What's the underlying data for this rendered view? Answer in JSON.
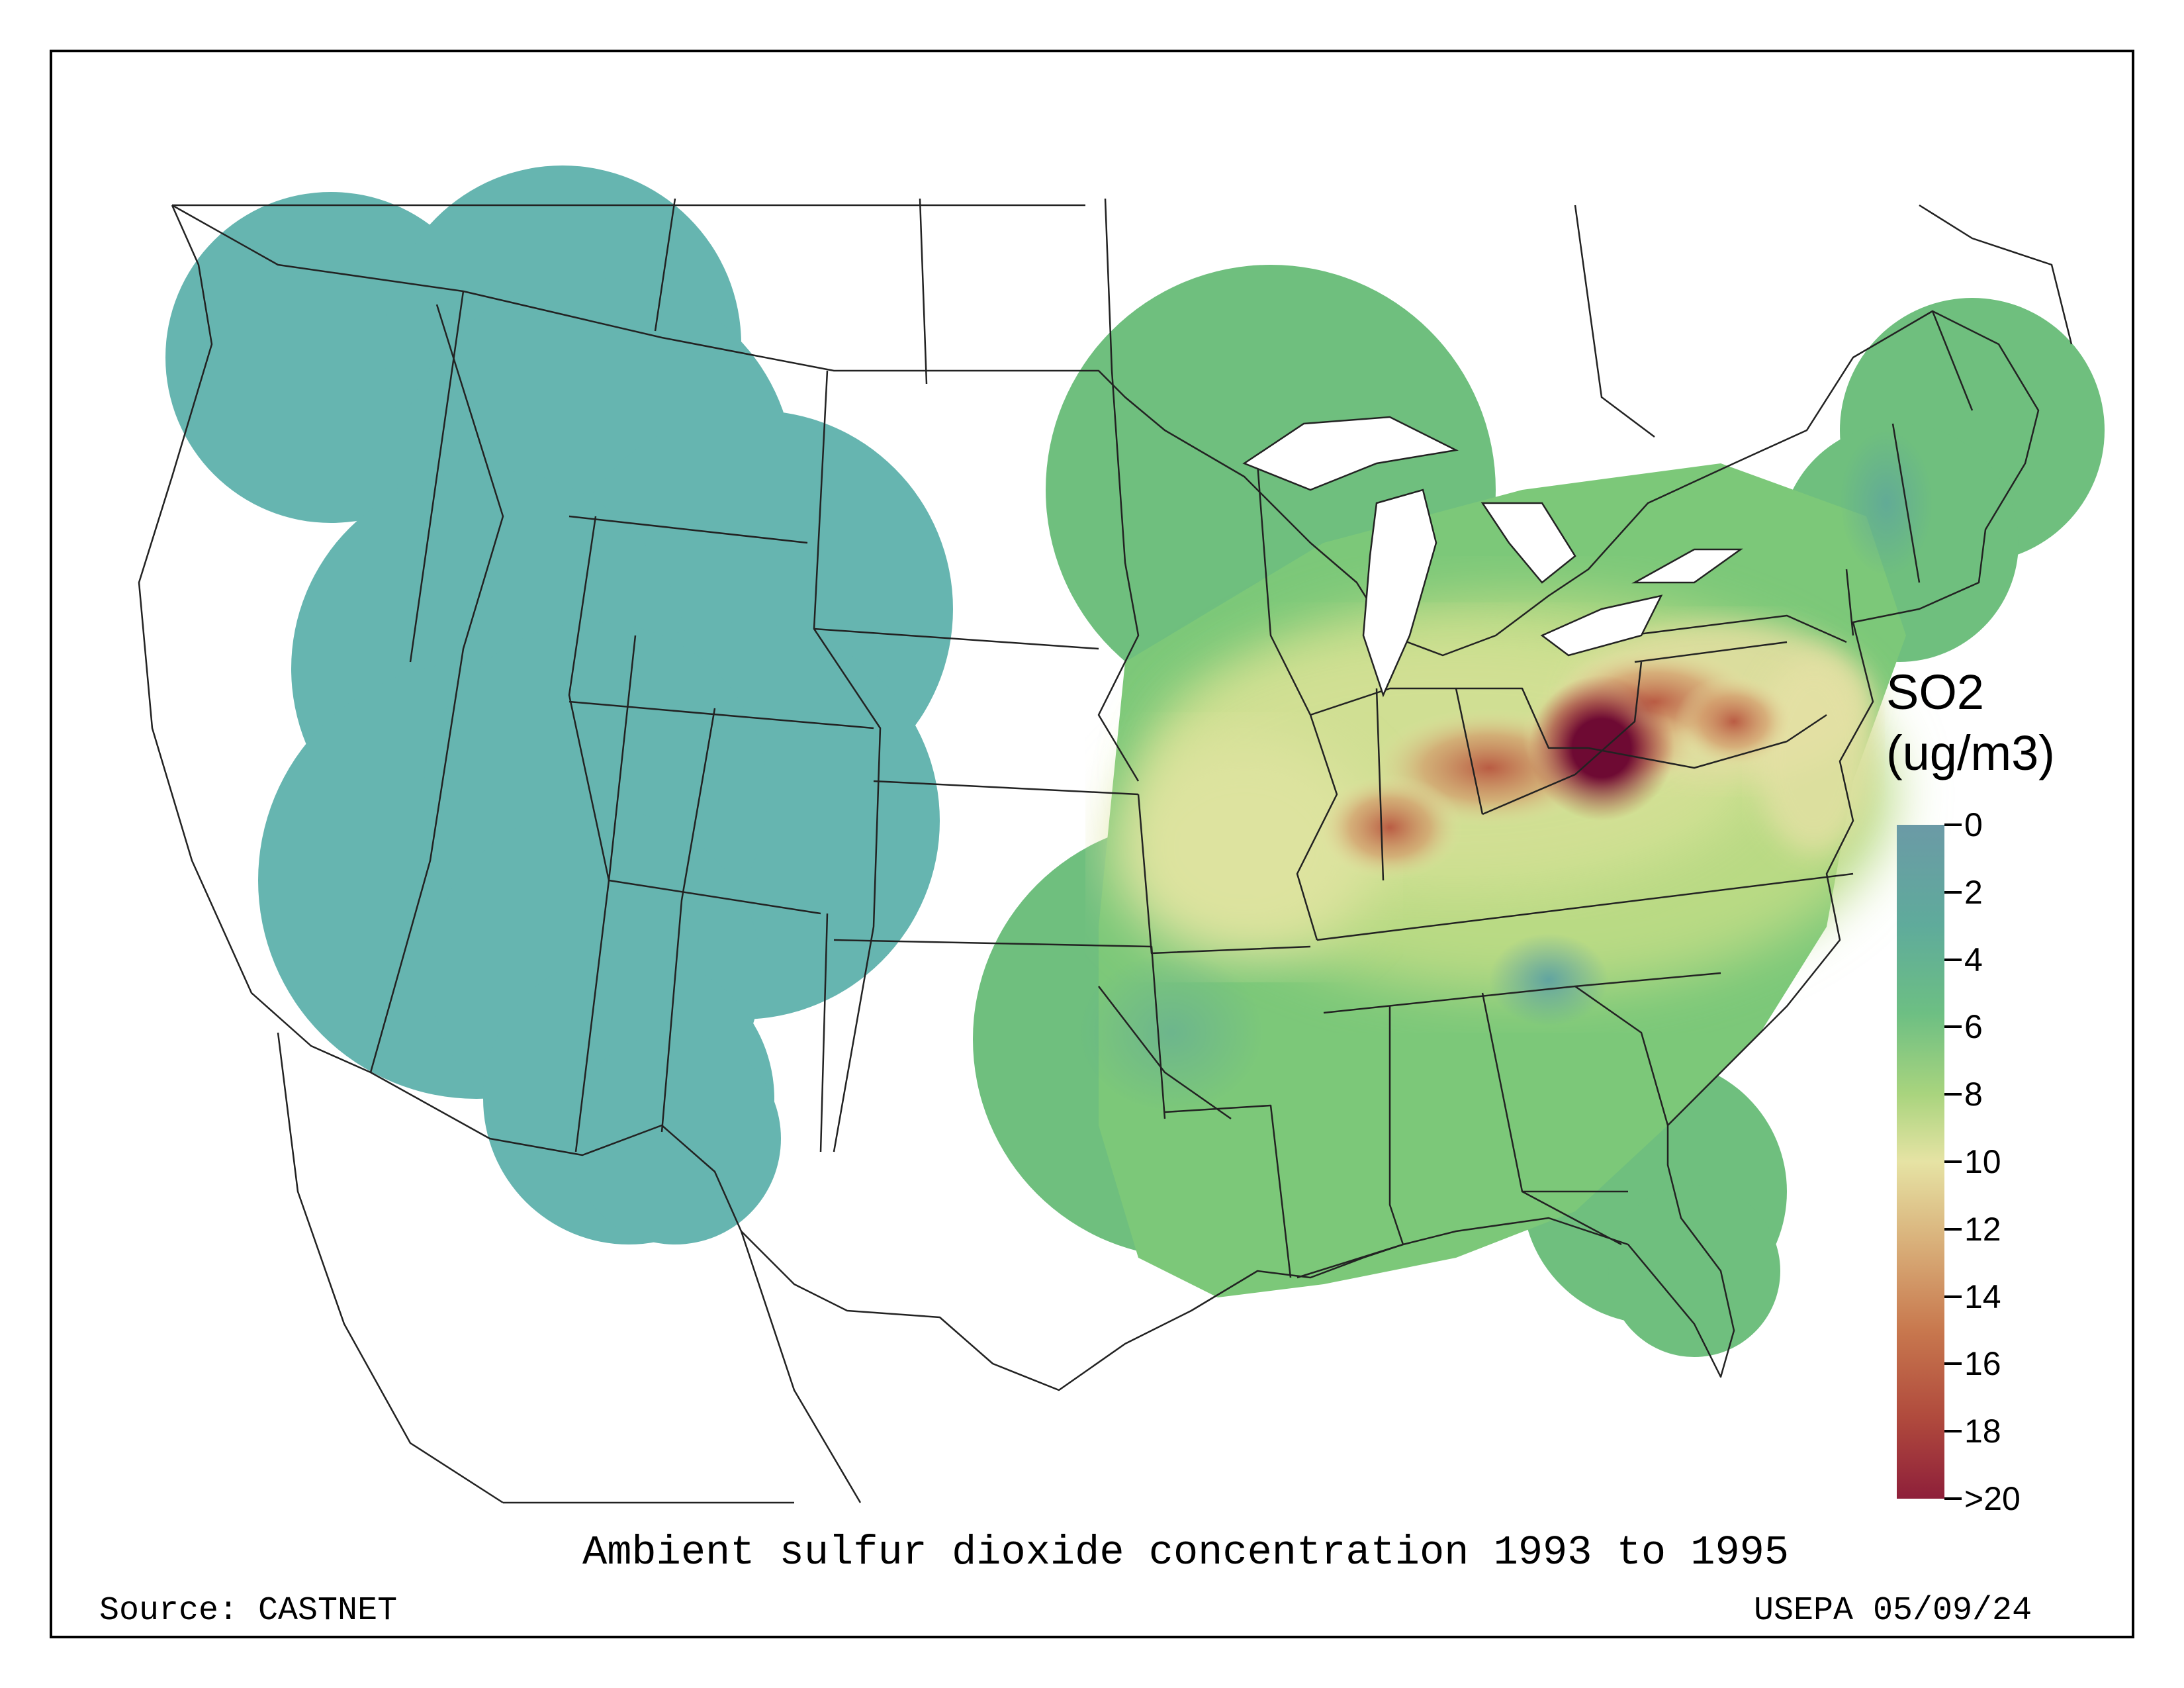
{
  "title": "Ambient sulfur dioxide concentration 1993 to 1995",
  "source": "Source: CASTNET",
  "credit": "USEPA 05/09/24",
  "legend": {
    "title_line1": "SO2",
    "title_line2": "(ug/m3)",
    "ticks": [
      {
        "value": 0,
        "label": "0"
      },
      {
        "value": 2,
        "label": "2"
      },
      {
        "value": 4,
        "label": "4"
      },
      {
        "value": 6,
        "label": "6"
      },
      {
        "value": 8,
        "label": "8"
      },
      {
        "value": 10,
        "label": "10"
      },
      {
        "value": 12,
        "label": "12"
      },
      {
        "value": 14,
        "label": "14"
      },
      {
        "value": 16,
        "label": "16"
      },
      {
        "value": 18,
        "label": "18"
      },
      {
        "value": 20,
        "label": ">20"
      }
    ],
    "colors": [
      "#6b9aa6",
      "#5fab9b",
      "#6dbf83",
      "#a9d47e",
      "#e6e3a4",
      "#d9b07a",
      "#c8784e",
      "#b04a3d",
      "#8e1f3a"
    ]
  },
  "colors": {
    "west_region": "#66b5b0",
    "east_base": "#7cc879",
    "hotspot_core": "#6e0a33"
  }
}
